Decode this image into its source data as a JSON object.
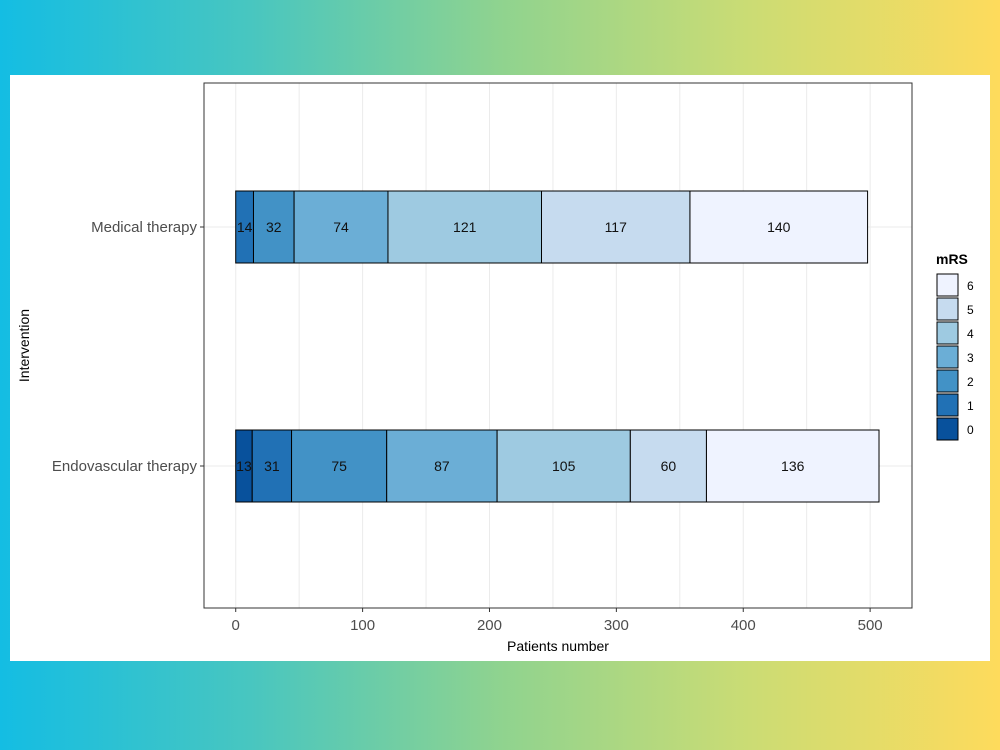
{
  "chart_data": {
    "type": "bar",
    "orientation": "horizontal",
    "stacked": true,
    "categories": [
      "Medical therapy",
      "Endovascular therapy"
    ],
    "series": [
      {
        "name": "0",
        "color": "#08519c",
        "values": [
          0,
          13
        ]
      },
      {
        "name": "1",
        "color": "#2171b5",
        "values": [
          14,
          31
        ]
      },
      {
        "name": "2",
        "color": "#4292c6",
        "values": [
          32,
          75
        ]
      },
      {
        "name": "3",
        "color": "#6baed6",
        "values": [
          74,
          87
        ]
      },
      {
        "name": "4",
        "color": "#9ecae1",
        "values": [
          121,
          105
        ]
      },
      {
        "name": "5",
        "color": "#c6dbef",
        "values": [
          117,
          60
        ]
      },
      {
        "name": "6",
        "color": "#eff3ff",
        "values": [
          140,
          136
        ]
      }
    ],
    "xlabel": "Patients number",
    "ylabel": "Intervention",
    "xlim": [
      -25,
      533
    ],
    "xticks": [
      0,
      100,
      200,
      300,
      400,
      500
    ],
    "legend": {
      "title": "mRS",
      "placement": "right"
    },
    "grid": true
  }
}
